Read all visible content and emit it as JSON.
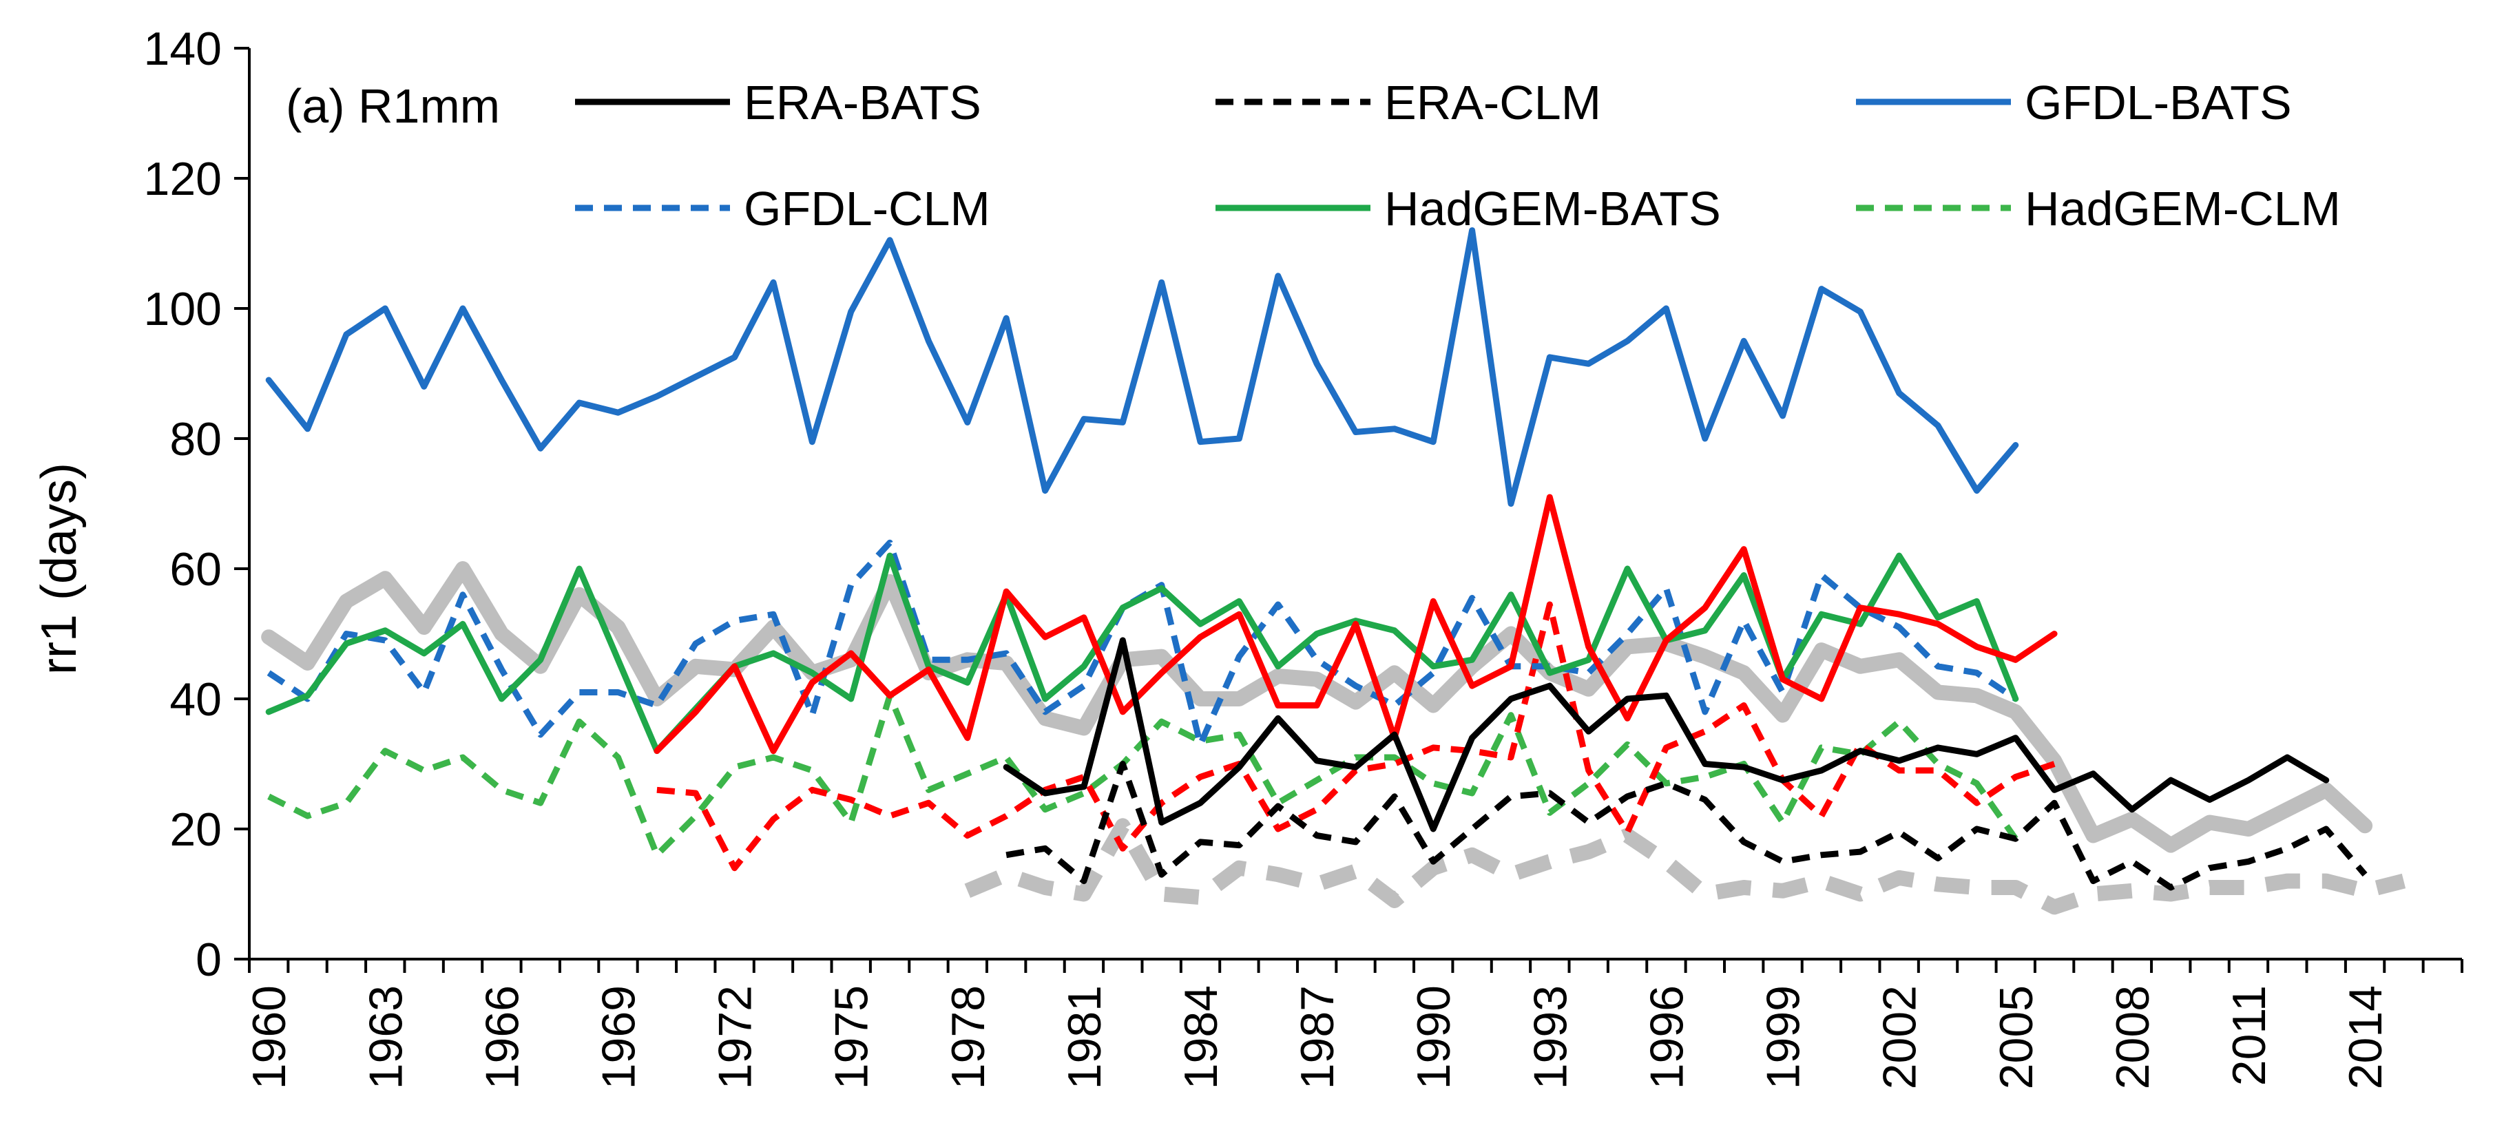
{
  "chart_data": {
    "type": "line",
    "panel_label": "(a) R1mm",
    "title": "",
    "xlabel": "",
    "ylabel": "rr1 (days)",
    "ylim": [
      0,
      140
    ],
    "yticks": [
      "0",
      "20",
      "40",
      "60",
      "80",
      "100",
      "120",
      "140"
    ],
    "xlim": [
      1960,
      2016
    ],
    "xticks": [
      "1960",
      "1963",
      "1966",
      "1969",
      "1972",
      "1975",
      "1978",
      "1981",
      "1984",
      "1987",
      "1990",
      "1993",
      "1996",
      "1999",
      "2002",
      "2005",
      "2008",
      "2011",
      "2014"
    ],
    "grid": false,
    "series": [
      {
        "name": "ERA-BATS",
        "color": "#000000",
        "style": "solid",
        "width": 9,
        "legend": true,
        "start_year": 1979,
        "values": [
          29.5,
          25.5,
          26.5,
          49,
          21,
          24,
          29.5,
          37,
          30.5,
          29.5,
          34.5,
          20,
          34,
          40,
          42,
          35,
          40,
          40.5,
          30,
          29.5,
          27.5,
          29,
          32,
          30.5,
          32.5,
          31.5,
          34,
          26,
          28.5,
          23,
          27.5,
          24.5,
          27.5,
          31,
          27.5
        ]
      },
      {
        "name": "ERA-CLM",
        "color": "#000000",
        "style": "dashed",
        "width": 9,
        "legend": true,
        "start_year": 1979,
        "values": [
          16,
          17,
          12,
          30,
          13,
          18,
          17.5,
          23.5,
          19,
          18,
          25,
          15,
          20,
          25,
          25.5,
          21,
          25,
          27,
          24.5,
          18,
          15,
          16,
          16.5,
          19.5,
          15.5,
          20,
          18.5,
          24,
          12,
          15,
          11,
          14,
          15,
          17,
          20,
          13
        ]
      },
      {
        "name": "GFDL-BATS",
        "color": "#1f6fc5",
        "style": "solid",
        "width": 9,
        "legend": true,
        "start_year": 1960,
        "values": [
          89,
          81.5,
          96,
          100,
          88,
          100,
          89,
          78.5,
          85.5,
          84,
          86.5,
          89.5,
          92.5,
          104,
          79.5,
          99.5,
          110.5,
          95,
          82.5,
          98.5,
          72,
          83,
          82.5,
          104,
          79.5,
          80,
          105,
          91.5,
          81,
          81.5,
          79.5,
          112,
          70,
          92.5,
          91.5,
          95,
          100,
          80,
          95,
          83.5,
          103,
          99.5,
          87,
          82,
          72,
          79
        ]
      },
      {
        "name": "GFDL-CLM",
        "color": "#1f6fc5",
        "style": "dashed",
        "width": 9,
        "legend": true,
        "start_year": 1960,
        "values": [
          44,
          40,
          50,
          49,
          41,
          56,
          44.5,
          34.5,
          41,
          41,
          39,
          48.5,
          52,
          53,
          37.5,
          57.5,
          64,
          46,
          46,
          47,
          38,
          42,
          54,
          57.5,
          33,
          46.5,
          54.5,
          46,
          42,
          39,
          44,
          55.5,
          45,
          45,
          44,
          50,
          57,
          38,
          52,
          41,
          59,
          54,
          51,
          45,
          44,
          40
        ]
      },
      {
        "name": "HadGEM-BATS",
        "color": "#1fa84a",
        "style": "solid",
        "width": 9,
        "legend": true,
        "start_year": 1960,
        "values": [
          38,
          40.5,
          48.5,
          50.5,
          47,
          51.5,
          40,
          46,
          60,
          46,
          32,
          38.5,
          45,
          47,
          44,
          40,
          62,
          45,
          42.5,
          56,
          40,
          45,
          54,
          57,
          51.5,
          55,
          45,
          50,
          52,
          50.5,
          45,
          46,
          56,
          44,
          46,
          60,
          49,
          50.5,
          59,
          43,
          53,
          51.5,
          62,
          52.5,
          55,
          40
        ]
      },
      {
        "name": "HadGEM-CLM",
        "color": "#3cb54a",
        "style": "dashed",
        "width": 9,
        "legend": true,
        "start_year": 1960,
        "values": [
          25,
          22,
          24,
          32,
          29,
          31,
          26,
          24,
          36.5,
          31,
          16,
          22,
          29.5,
          31,
          29,
          21,
          40.5,
          26,
          28.5,
          31,
          23,
          25.5,
          30,
          36.5,
          33.5,
          34.5,
          24,
          27.5,
          31,
          31,
          27,
          25.5,
          37.5,
          22.5,
          27,
          33,
          27,
          28,
          30,
          21,
          32.5,
          31.5,
          36.5,
          30,
          27,
          18.5
        ]
      },
      {
        "name": "red-solid",
        "color": "#ff0000",
        "style": "solid",
        "width": 9,
        "legend": false,
        "start_year": 1970,
        "values": [
          32,
          38,
          45,
          32,
          42.5,
          47,
          40.5,
          44.5,
          34,
          56.5,
          49.5,
          52.5,
          38,
          44,
          49.5,
          53,
          39,
          39,
          51.5,
          34,
          55,
          42,
          45,
          71,
          48,
          37,
          49,
          54,
          63,
          43,
          40,
          54,
          53,
          51.5,
          48,
          46,
          50
        ]
      },
      {
        "name": "red-dashed",
        "color": "#ff0000",
        "style": "dashed",
        "width": 9,
        "legend": false,
        "start_year": 1970,
        "values": [
          26,
          25.5,
          14,
          21.5,
          26,
          24.5,
          22,
          24,
          19,
          22,
          26,
          28,
          17,
          24,
          28,
          30,
          20,
          23,
          29,
          30,
          32.5,
          32,
          31,
          54.5,
          29,
          19.5,
          32.5,
          35,
          39,
          27.5,
          22,
          33,
          29,
          29,
          24,
          28,
          30
        ]
      },
      {
        "name": "grey-solid",
        "color": "#bebebe",
        "style": "solid",
        "width": 22,
        "legend": false,
        "start_year": 1960,
        "values": [
          49.5,
          45.5,
          55,
          58.5,
          51,
          60,
          50,
          45,
          56,
          51,
          40,
          45,
          44.5,
          51,
          44,
          46,
          58,
          44,
          46,
          45.5,
          37,
          35.5,
          46,
          46.5,
          40,
          40,
          43.5,
          43,
          39.5,
          44,
          39,
          45,
          50,
          44,
          41.5,
          48,
          48.5,
          46.5,
          44,
          37.5,
          47.5,
          45,
          46,
          41,
          40.5,
          38,
          30.5,
          19,
          21.5,
          17.5,
          21,
          20,
          23,
          26,
          20.5
        ]
      },
      {
        "name": "grey-dashed",
        "color": "#bebebe",
        "style": "dashed",
        "width": 22,
        "legend": false,
        "start_year": 1978,
        "values": [
          10.5,
          13,
          11,
          10,
          20.5,
          10,
          9.5,
          14,
          13,
          11.5,
          13.5,
          9,
          14,
          16,
          13,
          15,
          16.5,
          19,
          15,
          10,
          11,
          10.5,
          12,
          10,
          12.5,
          11.5,
          11,
          11,
          8,
          10,
          10.5,
          10,
          11,
          11,
          12,
          12,
          10.5,
          12
        ]
      }
    ]
  }
}
